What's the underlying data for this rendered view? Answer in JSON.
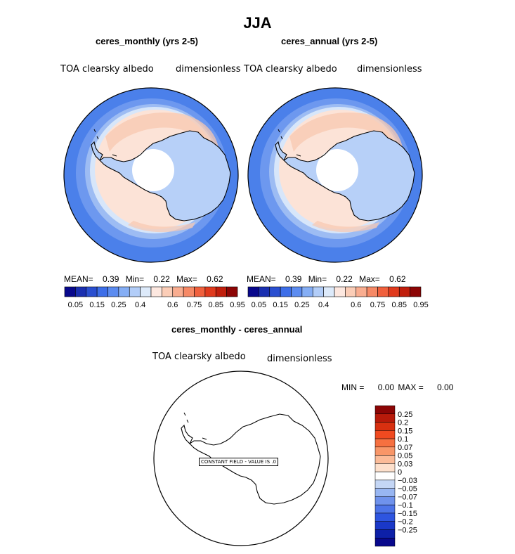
{
  "main_title": "JJA",
  "panels": [
    {
      "title": "ceres_monthly (yrs 2-5)",
      "variable": "TOA clearsky albedo",
      "units": "dimensionless",
      "stats": {
        "mean_label": "MEAN=",
        "mean": "0.39",
        "min_label": "Min=",
        "min": "0.22",
        "max_label": "Max=",
        "max": "0.62"
      }
    },
    {
      "title": "ceres_annual (yrs 2-5)",
      "variable": "TOA clearsky albedo",
      "units": "dimensionless",
      "stats": {
        "mean_label": "MEAN=",
        "mean": "0.39",
        "min_label": "Min=",
        "min": "0.22",
        "max_label": "Max=",
        "max": "0.62"
      }
    }
  ],
  "colorbar_top": {
    "colors": [
      "#08088c",
      "#1a2fb0",
      "#2a4fd0",
      "#3d6ee8",
      "#5c8cf0",
      "#85aef5",
      "#b2cdf8",
      "#ddeafa",
      "#fde8e0",
      "#fbcdb7",
      "#f9ad90",
      "#f68966",
      "#f0603d",
      "#e03a1d",
      "#c01e0c",
      "#8c0505"
    ],
    "labels": [
      "0.05",
      "0.15",
      "0.25",
      "0.4",
      "0.6",
      "0.75",
      "0.85",
      "0.95"
    ]
  },
  "diff_panel": {
    "title": "ceres_monthly - ceres_annual",
    "variable": "TOA clearsky albedo",
    "units": "dimensionless",
    "min_label": "MIN =",
    "min": "0.00",
    "max_label": "MAX =",
    "max": "0.00",
    "note": "CONSTANT FIELD - VALUE IS .0"
  },
  "colorbar_diff": {
    "colors": [
      "#8c0505",
      "#b81a0a",
      "#d83010",
      "#f04a20",
      "#f67040",
      "#f89668",
      "#fbbb98",
      "#fde0cc",
      "#ffffff",
      "#c4d6f5",
      "#98b6f2",
      "#6f92ec",
      "#4d74e8",
      "#2e55e0",
      "#1a38c8",
      "#0d20a8",
      "#08088c"
    ],
    "labels": [
      "0.25",
      "0.2",
      "0.15",
      "0.1",
      "0.07",
      "0.05",
      "0.03",
      "0",
      "−0.03",
      "−0.05",
      "−0.07",
      "−0.1",
      "−0.15",
      "−0.2",
      "−0.25"
    ]
  },
  "colors": {
    "ocean_outer": "#4b80ea",
    "ocean_mid": "#6d98ef",
    "ocean_inner": "#9dbcf3",
    "ice_edge": "#d7e6fa",
    "seaice": "#fce3d7",
    "seaice_dark": "#f8c8b0",
    "land": "#b7d0f8",
    "pole_hole": "#ffffff"
  }
}
